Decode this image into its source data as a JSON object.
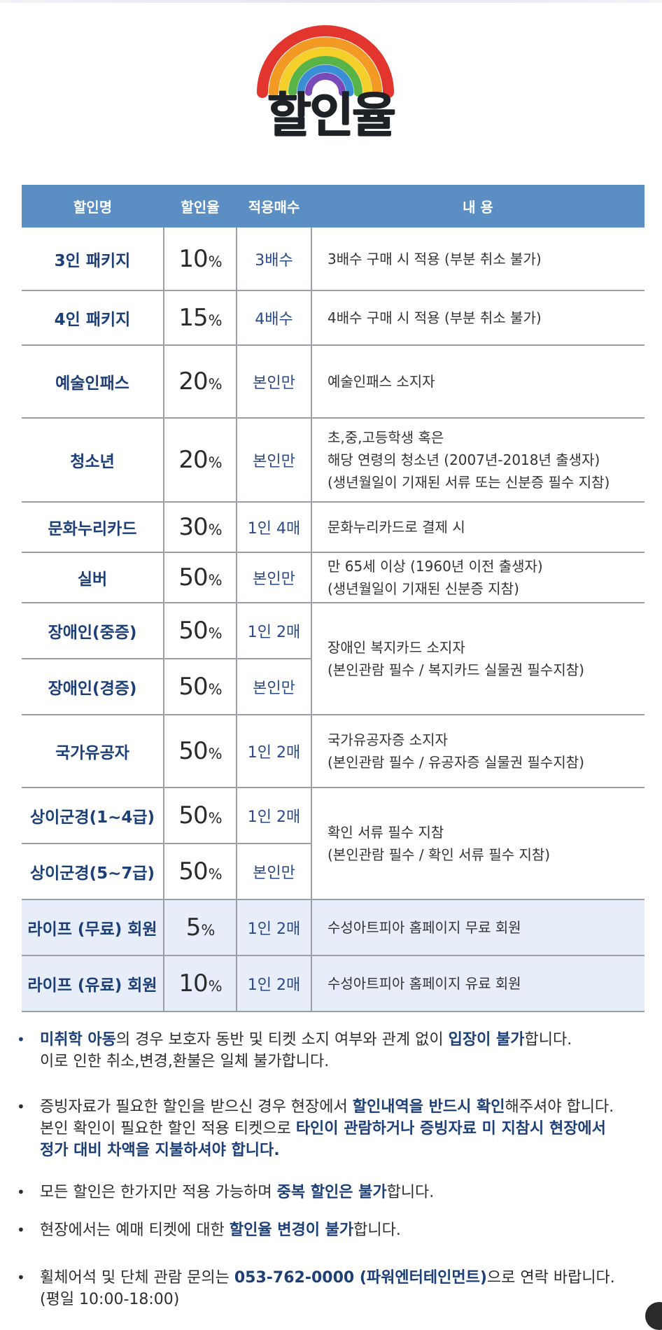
{
  "page": {
    "title": "할인율",
    "accent": "#5b8fc4",
    "text_blue": "#1c3f78"
  },
  "logo": {
    "icon": "rainbow-icon"
  },
  "table": {
    "headers": [
      "할인명",
      "할인율",
      "적용매수",
      "내 용"
    ],
    "rows": [
      {
        "name": "3인 패키지",
        "rate": "10",
        "qty": "3배수",
        "desc": [
          "3배수 구매 시 적용 (부분 취소 불가)"
        ]
      },
      {
        "name": "4인 패키지",
        "rate": "15",
        "qty": "4배수",
        "desc": [
          "4배수 구매 시 적용 (부분 취소 불가)"
        ]
      },
      {
        "name": "예술인패스",
        "rate": "20",
        "qty": "본인만",
        "desc": [
          "예술인패스 소지자"
        ]
      },
      {
        "name": "청소년",
        "rate": "20",
        "qty": "본인만",
        "desc": [
          "초,중,고등학생 혹은",
          "해당 연령의 청소년 (2007년-2018년 출생자)",
          "(생년월일이 기재된 서류 또는 신분증 필수 지참)"
        ]
      },
      {
        "name": "문화누리카드",
        "rate": "30",
        "qty": "1인 4매",
        "desc": [
          "문화누리카드로 결제 시"
        ]
      },
      {
        "name": "실버",
        "rate": "50",
        "qty": "본인만",
        "desc": [
          "만 65세 이상 (1960년 이전 출생자)",
          "(생년월일이 기재된 신분증 지참)"
        ]
      },
      {
        "name": "장애인(중증)",
        "rate": "50",
        "qty": "1인 2매",
        "desc": [
          "장애인 복지카드 소지자",
          "(본인관람 필수 / 복지카드 실물권 필수지참)"
        ]
      },
      {
        "name": "장애인(경증)",
        "rate": "50",
        "qty": "본인만"
      },
      {
        "name": "국가유공자",
        "rate": "50",
        "qty": "1인 2매",
        "desc": [
          "국가유공자증 소지자",
          "(본인관람 필수 / 유공자증 실물권 필수지참)"
        ]
      },
      {
        "name": "상이군경(1~4급)",
        "rate": "50",
        "qty": "1인 2매",
        "desc": [
          "확인 서류 필수 지참",
          "(본인관람 필수 / 확인 서류 필수 지참)"
        ]
      },
      {
        "name": "상이군경(5~7급)",
        "rate": "50",
        "qty": "본인만"
      },
      {
        "name": "라이프 (무료) 회원",
        "rate": "5",
        "qty": "1인 2매",
        "desc": [
          "수성아트피아 홈페이지 무료 회원"
        ]
      },
      {
        "name": "라이프 (유료) 회원",
        "rate": "10",
        "qty": "1인 2매",
        "desc": [
          "수성아트피아 홈페이지 유료 회원"
        ]
      }
    ],
    "percent_sign": "%"
  },
  "notes": [
    {
      "bullet": "•",
      "parts": [
        [
          "미취학 아동",
          true
        ],
        [
          "의 경우 보호자 동반 및 티켓 소지 여부와 관계 없이 ",
          false
        ],
        [
          "입장이 불가",
          true
        ],
        [
          "합니다.",
          false
        ]
      ],
      "line2": "이로 인한 취소,변경,환불은 일체 불가합니다."
    },
    {
      "bullet": "•",
      "parts": [
        [
          "증빙자료가 필요한 할인을 받으신 경우 현장에서 ",
          false
        ],
        [
          "할인내역을 반드시 확인",
          true
        ],
        [
          "해주셔야 합니다.",
          false
        ]
      ],
      "line2": "본인 확인이 필요한 할인 적용 티켓으로 ",
      "line2_hl": "타인이 관람하거나 증빙자료 미 지참시 현장에서",
      "line3_hl": "정가 대비 차액을 지불하셔야 합니다."
    },
    {
      "bullet": "•",
      "parts": [
        [
          "모든 할인은 한가지만 적용 가능하며 ",
          false
        ],
        [
          "중복 할인은 불가",
          true
        ],
        [
          "합니다.",
          false
        ]
      ]
    },
    {
      "bullet": "•",
      "parts": [
        [
          "현장에서는 예매 티켓에 대한 ",
          false
        ],
        [
          "할인율 변경이 불가",
          true
        ],
        [
          "합니다.",
          false
        ]
      ]
    },
    {
      "bullet": "•",
      "parts": [
        [
          "휠체어석 및 단체 관람 문의는 ",
          false
        ],
        [
          "053-762-0000 (파워엔터테인먼트)",
          true
        ],
        [
          "으로 연락 바랍니다.",
          false
        ]
      ],
      "line2": "(평일 10:00-18:00)"
    }
  ]
}
